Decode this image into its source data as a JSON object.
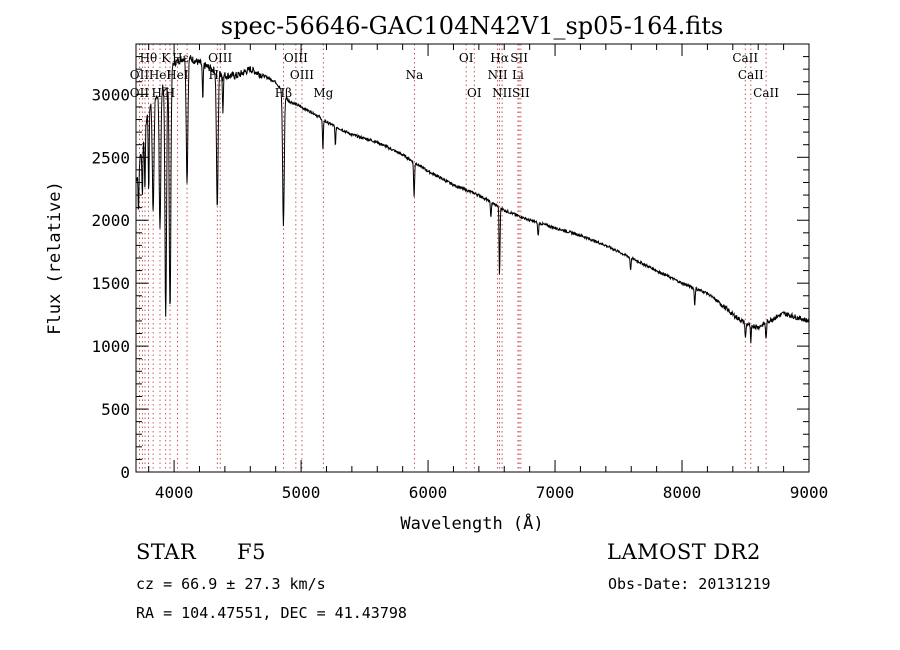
{
  "chart_data": {
    "type": "line",
    "title": "spec-56646-GAC104N42V1_sp05-164.fits",
    "xlabel": "Wavelength (Å)",
    "ylabel": "Flux (relative)",
    "xlim": [
      3700,
      9000
    ],
    "ylim": [
      0,
      3400
    ],
    "xticks": [
      4000,
      5000,
      6000,
      7000,
      8000,
      9000
    ],
    "yticks": [
      0,
      500,
      1000,
      1500,
      2000,
      2500,
      3000
    ],
    "grid": false,
    "continuum": {
      "x": [
        3700,
        3800,
        3900,
        4000,
        4100,
        4200,
        4300,
        4400,
        4500,
        4600,
        4700,
        4800,
        4900,
        5000,
        5100,
        5200,
        5400,
        5600,
        5800,
        6000,
        6200,
        6400,
        6600,
        6800,
        7000,
        7200,
        7400,
        7600,
        7800,
        8000,
        8200,
        8300,
        8400,
        8500,
        8600,
        8700,
        8800,
        8900,
        9000
      ],
      "y": [
        2300,
        2900,
        3050,
        3250,
        3300,
        3250,
        3200,
        3150,
        3150,
        3200,
        3150,
        3100,
        2950,
        2900,
        2850,
        2780,
        2680,
        2620,
        2520,
        2390,
        2280,
        2200,
        2080,
        2000,
        1940,
        1880,
        1800,
        1700,
        1600,
        1500,
        1420,
        1340,
        1250,
        1180,
        1150,
        1210,
        1260,
        1230,
        1200
      ]
    },
    "absorption_lines": [
      {
        "x": 3720,
        "depth": 350
      },
      {
        "x": 3750,
        "depth": 400
      },
      {
        "x": 3770,
        "depth": 500
      },
      {
        "x": 3800,
        "depth": 700
      },
      {
        "x": 3835,
        "depth": 900
      },
      {
        "x": 3889,
        "depth": 1100
      },
      {
        "x": 3934,
        "depth": 1900
      },
      {
        "x": 3968,
        "depth": 1900
      },
      {
        "x": 4102,
        "depth": 1000
      },
      {
        "x": 4226,
        "depth": 300
      },
      {
        "x": 4340,
        "depth": 1100
      },
      {
        "x": 4384,
        "depth": 300
      },
      {
        "x": 4861,
        "depth": 1050
      },
      {
        "x": 5172,
        "depth": 250
      },
      {
        "x": 5270,
        "depth": 150
      },
      {
        "x": 5890,
        "depth": 280
      },
      {
        "x": 6495,
        "depth": 120
      },
      {
        "x": 6563,
        "depth": 550
      },
      {
        "x": 6867,
        "depth": 110
      },
      {
        "x": 7595,
        "depth": 100
      },
      {
        "x": 8100,
        "depth": 140
      },
      {
        "x": 8500,
        "depth": 120
      },
      {
        "x": 8542,
        "depth": 150
      },
      {
        "x": 8662,
        "depth": 140
      }
    ],
    "line_markers": [
      {
        "label": "Hθ",
        "x": 3798,
        "row": 0
      },
      {
        "label": "K",
        "x": 3934,
        "row": 0
      },
      {
        "label": "Hε",
        "x": 4050,
        "row": 0
      },
      {
        "label": "OIII",
        "x": 4363,
        "row": 0
      },
      {
        "label": "OIII",
        "x": 4959,
        "row": 0
      },
      {
        "label": "OI",
        "x": 6300,
        "row": 0
      },
      {
        "label": "Hα",
        "x": 6563,
        "row": 0
      },
      {
        "label": "SII",
        "x": 6717,
        "row": 0
      },
      {
        "label": "CaII",
        "x": 8498,
        "row": 0
      },
      {
        "label": "OII",
        "x": 3727,
        "row": 1
      },
      {
        "label": "HeI",
        "x": 3889,
        "row": 1
      },
      {
        "label": "HeI",
        "x": 4026,
        "row": 1
      },
      {
        "label": "Hγ",
        "x": 4340,
        "row": 1
      },
      {
        "label": "OIII",
        "x": 5007,
        "row": 1
      },
      {
        "label": "Na",
        "x": 5893,
        "row": 1
      },
      {
        "label": "NII",
        "x": 6548,
        "row": 1
      },
      {
        "label": "Li",
        "x": 6708,
        "row": 1
      },
      {
        "label": "CaII",
        "x": 8542,
        "row": 1
      },
      {
        "label": "OII",
        "x": 3727,
        "row": 2
      },
      {
        "label": "Hζ",
        "x": 3889,
        "row": 2
      },
      {
        "label": "H",
        "x": 3968,
        "row": 2
      },
      {
        "label": "Hβ",
        "x": 4861,
        "row": 2
      },
      {
        "label": "Mg",
        "x": 5175,
        "row": 2
      },
      {
        "label": "OI",
        "x": 6364,
        "row": 2
      },
      {
        "label": "NII",
        "x": 6583,
        "row": 2
      },
      {
        "label": "SII",
        "x": 6731,
        "row": 2
      },
      {
        "label": "CaII",
        "x": 8662,
        "row": 2
      }
    ],
    "marker_lines": [
      3727,
      3750,
      3771,
      3798,
      3835,
      3889,
      3934,
      3968,
      4026,
      4102,
      4340,
      4363,
      4861,
      4959,
      5007,
      5175,
      5893,
      6300,
      6364,
      6548,
      6563,
      6583,
      6708,
      6717,
      6731,
      8498,
      8542,
      8662
    ]
  },
  "info": {
    "object_type": "STAR",
    "subclass": "F5",
    "survey": "LAMOST DR2",
    "cz": "cz = 66.9 ± 27.3 km/s",
    "obs_date": "Obs-Date: 20131219",
    "coords": "RA = 104.47551, DEC =  41.43798"
  }
}
